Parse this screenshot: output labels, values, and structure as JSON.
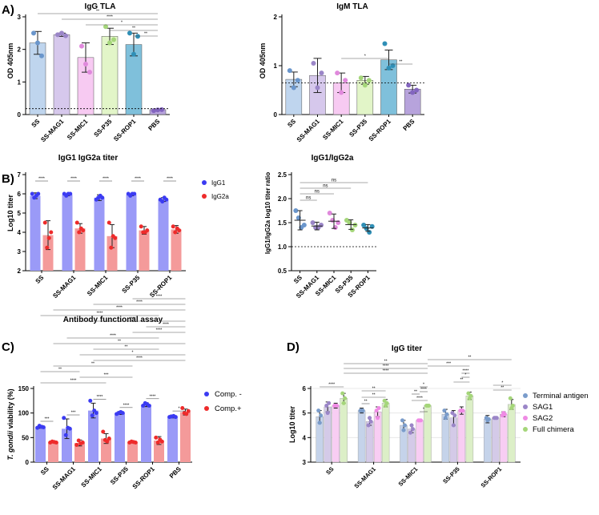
{
  "figure": {
    "panel_labels": [
      "A)",
      "B)",
      "C)",
      "D)"
    ]
  },
  "chart_data": [
    {
      "id": "igg_tla",
      "type": "bar",
      "title": "IgG TLA",
      "ylabel": "OD 405nm",
      "ylim": [
        0,
        3
      ],
      "yticks": [
        0,
        1,
        2,
        3
      ],
      "categories": [
        "SS",
        "SS-MAG1",
        "SS-MIC1",
        "SS-P35",
        "SS-ROP1",
        "PBS"
      ],
      "values": [
        2.2,
        2.45,
        1.75,
        2.4,
        2.15,
        0.15
      ],
      "errors": [
        0.35,
        0.05,
        0.45,
        0.25,
        0.35,
        0.02
      ],
      "colors": [
        "#bfd5ee",
        "#d6c8ec",
        "#f7caf2",
        "#e2f5c8",
        "#7fc0db",
        "#b7a3dc"
      ],
      "dot_colors": [
        "#6a96cc",
        "#9b86c8",
        "#e089dc",
        "#a5d67a",
        "#2f8fb6",
        "#8365bf"
      ],
      "points": [
        [
          2.5,
          2.2,
          1.8
        ],
        [
          2.45,
          2.5,
          2.42
        ],
        [
          2.1,
          1.55,
          1.3
        ],
        [
          2.7,
          2.2,
          2.3
        ],
        [
          2.5,
          1.85,
          2.4
        ],
        [
          0.12,
          0.14,
          0.15
        ]
      ],
      "reference_line": 0.18,
      "significance": [
        "**",
        "****",
        "*",
        "**",
        "**"
      ]
    },
    {
      "id": "igm_tla",
      "type": "bar",
      "title": "IgM TLA",
      "ylabel": "OD 405nm",
      "ylim": [
        0,
        2
      ],
      "yticks": [
        0,
        1,
        2
      ],
      "categories": [
        "SS",
        "SS-MAG1",
        "SS-MIC1",
        "SS-P35",
        "SS-ROP1",
        "PBS"
      ],
      "values": [
        0.72,
        0.8,
        0.65,
        0.7,
        1.12,
        0.52
      ],
      "errors": [
        0.15,
        0.35,
        0.2,
        0.08,
        0.2,
        0.08
      ],
      "colors": [
        "#bfd5ee",
        "#d6c8ec",
        "#f7caf2",
        "#e2f5c8",
        "#7fc0db",
        "#b7a3dc"
      ],
      "dot_colors": [
        "#6a96cc",
        "#9b86c8",
        "#e089dc",
        "#a5d67a",
        "#2f8fb6",
        "#8365bf"
      ],
      "points": [
        [
          0.9,
          0.55,
          0.7
        ],
        [
          1.05,
          0.55,
          0.85
        ],
        [
          0.85,
          0.45,
          0.7
        ],
        [
          0.75,
          0.6,
          0.7
        ],
        [
          1.45,
          0.95,
          1.0
        ],
        [
          0.6,
          0.45,
          0.5
        ]
      ],
      "reference_line": 0.65,
      "significance": [
        "*",
        "**"
      ]
    },
    {
      "id": "igg1_igg2a",
      "type": "bar",
      "title": "IgG1 IgG2a titer",
      "ylabel": "Log10 titer",
      "ylim": [
        2,
        7
      ],
      "yticks": [
        2,
        3,
        4,
        5,
        6,
        7
      ],
      "categories": [
        "SS",
        "SS-MAG1",
        "SS-MIC1",
        "SS-P35",
        "SS-ROP1"
      ],
      "series": [
        {
          "name": "IgG1",
          "color": "#3b3bf2",
          "bar_color": "#9a9af7",
          "values": [
            5.9,
            5.95,
            5.8,
            5.95,
            5.7
          ],
          "errors": [
            0.15,
            0.05,
            0.15,
            0.05,
            0.1
          ],
          "points": [
            [
              6.0,
              5.8,
              5.9,
              6.0
            ],
            [
              6.0,
              5.9,
              6.0,
              6.0
            ],
            [
              5.7,
              5.8,
              5.9,
              5.8
            ],
            [
              6.0,
              5.9,
              6.0,
              6.0
            ],
            [
              5.7,
              5.6,
              5.8,
              5.7
            ]
          ]
        },
        {
          "name": "IgG2a",
          "color": "#ee2b2b",
          "bar_color": "#f49a9a",
          "values": [
            3.85,
            4.2,
            3.8,
            4.1,
            4.15
          ],
          "errors": [
            0.75,
            0.25,
            0.6,
            0.2,
            0.2
          ],
          "points": [
            [
              4.5,
              3.2,
              3.7,
              4.0
            ],
            [
              4.5,
              4.0,
              4.2,
              4.1
            ],
            [
              4.5,
              3.2,
              3.8,
              3.7
            ],
            [
              4.3,
              4.0,
              4.0,
              4.1
            ],
            [
              4.3,
              4.0,
              4.2,
              4.1
            ]
          ]
        }
      ],
      "significance": [
        "****",
        "****",
        "****",
        "****",
        "****"
      ]
    },
    {
      "id": "ratio",
      "type": "scatter",
      "title": "IgG1/IgG2a",
      "ylabel": "IgG1/IgG2a log10 titer ratio",
      "ylim": [
        0.5,
        2.5
      ],
      "yticks": [
        0.5,
        1.0,
        1.5,
        2.0,
        2.5
      ],
      "tick_labels": [
        "0.5",
        "1.0",
        "1.5",
        "2.0",
        "2.5"
      ],
      "categories": [
        "SS",
        "SS-MAG1",
        "SS-MIC1",
        "SS-P35",
        "SS-ROP1"
      ],
      "means": [
        1.55,
        1.43,
        1.53,
        1.46,
        1.39
      ],
      "errors": [
        0.2,
        0.08,
        0.15,
        0.1,
        0.07
      ],
      "dot_colors": [
        "#6a96cc",
        "#9b86c8",
        "#e089dc",
        "#a5d67a",
        "#2f8fb6"
      ],
      "points": [
        [
          1.75,
          1.6,
          1.4,
          1.45
        ],
        [
          1.5,
          1.4,
          1.4,
          1.45
        ],
        [
          1.7,
          1.55,
          1.4,
          1.5
        ],
        [
          1.55,
          1.5,
          1.35,
          1.45
        ],
        [
          1.45,
          1.38,
          1.3,
          1.42
        ]
      ],
      "reference_line": 1.0,
      "significance": [
        "ns",
        "ns",
        "ns",
        "ns"
      ]
    },
    {
      "id": "functional",
      "type": "bar",
      "title": "Antibody functional assay",
      "ylabel": "T. gondii viability (%)",
      "ylabel_italic": "T. gondii",
      "ylabel_rest": " viability (%)",
      "ylim": [
        0,
        150
      ],
      "yticks": [
        0,
        50,
        100,
        150
      ],
      "categories": [
        "SS",
        "SS-MAG1",
        "SS-MIC1",
        "SS-P35",
        "SS-ROP1",
        "PBS"
      ],
      "series": [
        {
          "name": "Comp. -",
          "color": "#3b3bf2",
          "bar_color": "#9a9af7",
          "values": [
            72,
            68,
            105,
            100,
            117,
            93
          ],
          "errors": [
            3,
            20,
            15,
            3,
            4,
            3
          ],
          "points": [
            [
              70,
              74,
              72,
              71
            ],
            [
              90,
              55,
              70,
              68
            ],
            [
              125,
              95,
              105,
              100
            ],
            [
              98,
              100,
              102,
              100
            ],
            [
              115,
              120,
              118,
              115
            ],
            [
              92,
              93,
              94,
              92
            ]
          ]
        },
        {
          "name": "Comp.+",
          "color": "#ee2b2b",
          "bar_color": "#f49a9a",
          "values": [
            41,
            39,
            48,
            41,
            44,
            102
          ],
          "errors": [
            2,
            6,
            10,
            2,
            8,
            6
          ],
          "points": [
            [
              40,
              42,
              41,
              40
            ],
            [
              35,
              44,
              38,
              40
            ],
            [
              62,
              45,
              42,
              48
            ],
            [
              40,
              42,
              41,
              40
            ],
            [
              50,
              40,
              46,
              42
            ],
            [
              110,
              100,
              98,
              104
            ]
          ]
        }
      ],
      "significance": [
        "***",
        "***",
        "****",
        "****",
        "****",
        "*",
        "****",
        "***",
        "**",
        "**",
        "****",
        "*",
        "**",
        "**",
        "****",
        "****",
        "****",
        "****",
        "****",
        "****",
        "****",
        "****"
      ]
    },
    {
      "id": "igg_titer",
      "type": "bar",
      "title": "IgG titer",
      "ylabel": "Log10 titer",
      "ylim": [
        3,
        6
      ],
      "yticks": [
        3,
        4,
        5,
        6
      ],
      "categories": [
        "SS",
        "SS-MAG1",
        "SS-MIC1",
        "SS-P35",
        "SS-ROP1"
      ],
      "series": [
        {
          "name": "Terminal antigen",
          "color": "#7a9ccb",
          "bar_color": "#c5d3ea",
          "values": [
            4.85,
            5.1,
            4.5,
            4.95,
            4.75
          ],
          "errors": [
            0.25,
            0.1,
            0.2,
            0.2,
            0.15
          ],
          "points": [
            [
              5.1,
              4.6,
              4.9
            ],
            [
              5.1,
              5.1,
              5.1
            ],
            [
              4.7,
              4.3,
              4.5
            ],
            [
              5.1,
              4.8,
              4.95
            ],
            [
              4.8,
              4.7,
              4.75
            ]
          ]
        },
        {
          "name": "SAG1",
          "color": "#9b86c8",
          "bar_color": "#d4cae8",
          "values": [
            5.25,
            4.65,
            4.35,
            4.8,
            4.8
          ],
          "errors": [
            0.2,
            0.15,
            0.15,
            0.3,
            0.05
          ],
          "points": [
            [
              5.3,
              5.0,
              5.4
            ],
            [
              4.5,
              4.8,
              4.65
            ],
            [
              4.2,
              4.5,
              4.35
            ],
            [
              5.0,
              4.5,
              4.9
            ],
            [
              4.8,
              4.8,
              4.8
            ]
          ]
        },
        {
          "name": "SAG2",
          "color": "#ef8be4",
          "bar_color": "#f8cdf3",
          "values": [
            5.3,
            5.05,
            4.7,
            5.1,
            4.95
          ],
          "errors": [
            0.1,
            0.2,
            0.05,
            0.15,
            0.1
          ],
          "points": [
            [
              5.3,
              5.3,
              5.3
            ],
            [
              5.1,
              4.8,
              5.2
            ],
            [
              4.7,
              4.7,
              4.7
            ],
            [
              5.1,
              5.1,
              5.1
            ],
            [
              4.9,
              5.0,
              4.95
            ]
          ]
        },
        {
          "name": "Full chimera",
          "color": "#a5d67a",
          "bar_color": "#dcefc7",
          "values": [
            5.6,
            5.4,
            5.3,
            5.7,
            5.35
          ],
          "errors": [
            0.2,
            0.15,
            0.03,
            0.15,
            0.2
          ],
          "points": [
            [
              5.8,
              5.4,
              5.6
            ],
            [
              5.5,
              5.3,
              5.4
            ],
            [
              5.3,
              5.3,
              5.3
            ],
            [
              5.8,
              5.6,
              5.7
            ],
            [
              5.6,
              5.2,
              5.3
            ]
          ]
        }
      ],
      "significance": [
        "****",
        "**",
        "**",
        "**",
        "*",
        "****",
        "**",
        "****",
        "*",
        "****",
        "**",
        "*",
        "****",
        "****",
        "**",
        "***",
        "**",
        "*",
        "**"
      ]
    }
  ]
}
